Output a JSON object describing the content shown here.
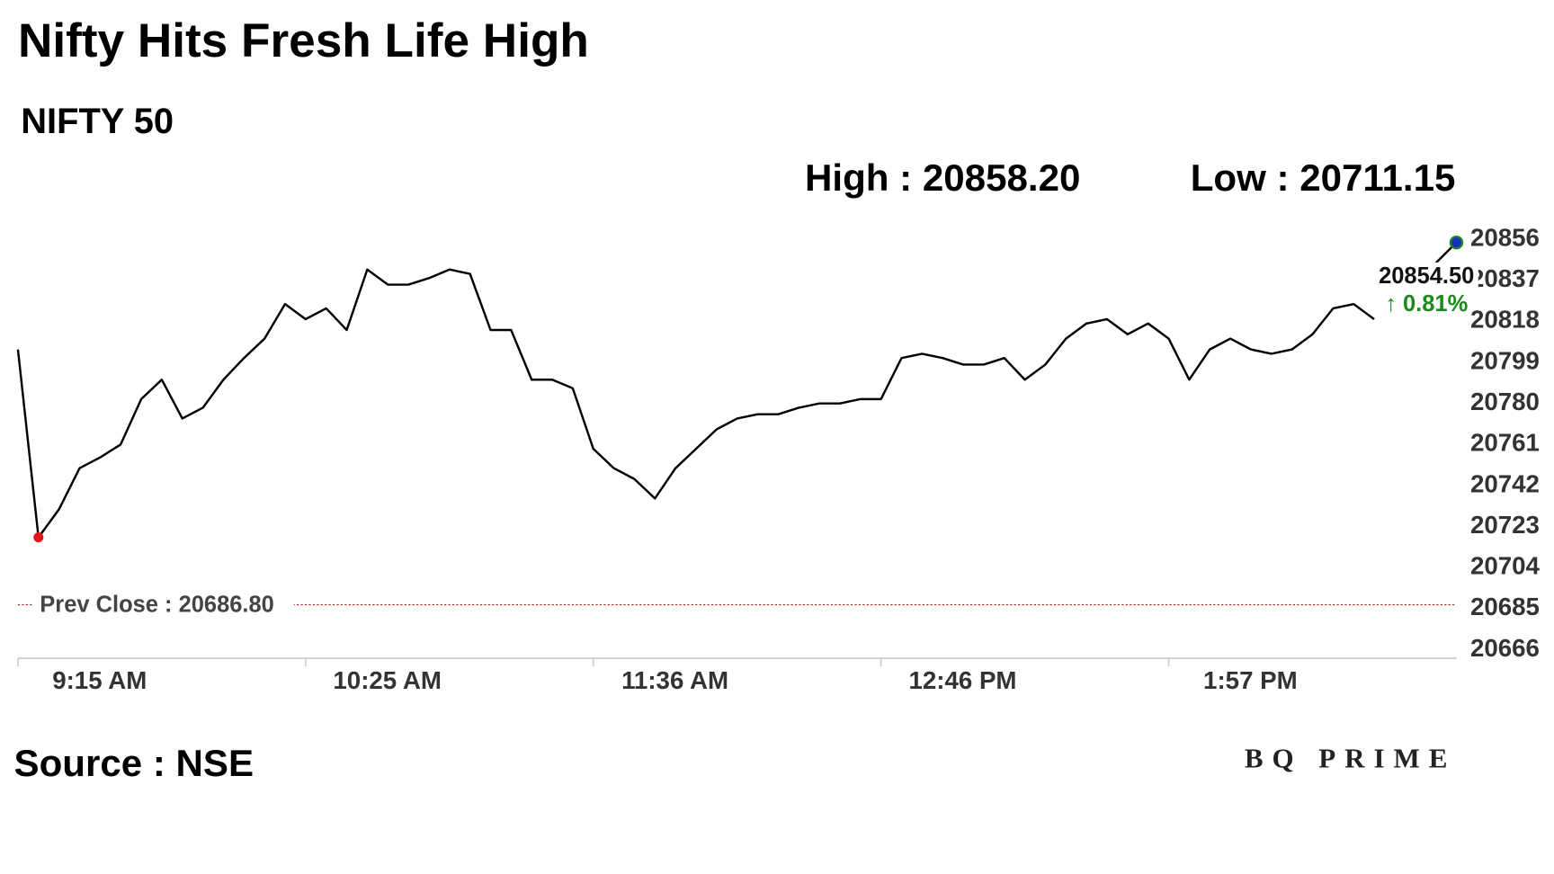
{
  "chart_data": {
    "type": "line",
    "title": "Nifty Hits Fresh Life High",
    "subtitle": "NIFTY 50",
    "high_label": "High : 20858.20",
    "low_label": "Low : 20711.15",
    "last_price_label": "20854.50",
    "change_label": "↑ 0.81%",
    "prev_close": {
      "value": 20686.8,
      "label": "Prev Close : 20686.80"
    },
    "source": "Source : NSE",
    "brand": "BQ PRIME",
    "categories": [
      "9:15 AM",
      null,
      null,
      null,
      null,
      null,
      null,
      null,
      null,
      null,
      null,
      null,
      null,
      null,
      "10:25 AM",
      null,
      null,
      null,
      null,
      null,
      null,
      null,
      null,
      null,
      null,
      null,
      null,
      null,
      "11:36 AM",
      null,
      null,
      null,
      null,
      null,
      null,
      null,
      null,
      null,
      null,
      null,
      null,
      null,
      "12:46 PM",
      null,
      null,
      null,
      null,
      null,
      null,
      null,
      null,
      null,
      null,
      null,
      null,
      null,
      "1:57 PM",
      null,
      null,
      null,
      null,
      null,
      null,
      null,
      null,
      null,
      null,
      null,
      null,
      null,
      null
    ],
    "series": [
      {
        "name": "NIFTY 50",
        "color": "#000000",
        "values": [
          20805,
          20718,
          20731,
          20750,
          20755,
          20761,
          20782,
          20791,
          20773,
          20778,
          20791,
          20801,
          20810,
          20826,
          20819,
          20824,
          20814,
          20842,
          20835,
          20835,
          20838,
          20842,
          20840,
          20814,
          20814,
          20791,
          20791,
          20787,
          20759,
          20750,
          20745,
          20736,
          20750,
          20759,
          20768,
          20773,
          20775,
          20775,
          20778,
          20780,
          20780,
          20782,
          20782,
          20801,
          20803,
          20801,
          20798,
          20798,
          20801,
          20791,
          20798,
          20810,
          20817,
          20819,
          20812,
          20817,
          20810,
          20791,
          20805,
          20810,
          20805,
          20803,
          20805,
          20812,
          20824,
          20826,
          20819,
          null,
          null,
          20845,
          20854.5
        ]
      }
    ],
    "ylim": [
      20662,
      20860
    ],
    "yticks": [
      20666,
      20685,
      20704,
      20723,
      20742,
      20761,
      20780,
      20799,
      20818,
      20837,
      20856
    ],
    "low_marker_color": "#e8141b",
    "last_marker_color": "#1a2fc4",
    "change_color": "#1a8a1a",
    "prev_close_color": "#b22222"
  }
}
